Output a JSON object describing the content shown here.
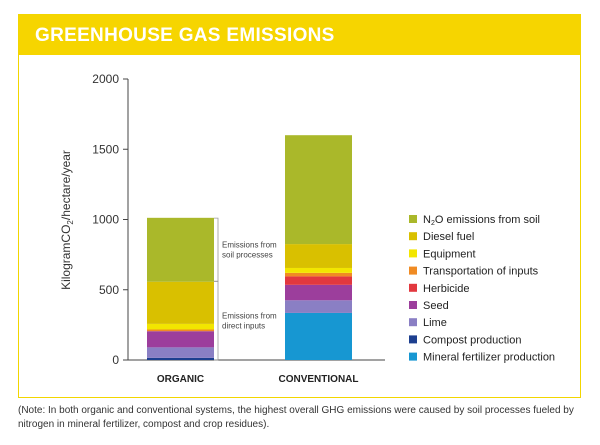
{
  "title": "GREENHOUSE GAS EMISSIONS",
  "note": "(Note: In both organic and conventional systems, the highest overall GHG emissions were caused by soil processes fueled by nitrogen in mineral fertilizer, compost and crop residues).",
  "chart_data": {
    "type": "bar",
    "stacked": true,
    "categories": [
      "ORGANIC",
      "CONVENTIONAL"
    ],
    "ylabel_parts": [
      "KilogramCO",
      "2",
      "/hectare/year"
    ],
    "ylim": [
      0,
      2000
    ],
    "yticks": [
      "0",
      "500",
      "1000",
      "1500",
      "2000"
    ],
    "grid": false,
    "legend_position": "right",
    "series": [
      {
        "name": "Mineral fertilizer production",
        "color": "#1797d2",
        "values": [
          0,
          335
        ]
      },
      {
        "name": "Compost production",
        "color": "#1d3f8f",
        "values": [
          15,
          0
        ]
      },
      {
        "name": "Lime",
        "color": "#8a7fc4",
        "values": [
          75,
          90
        ]
      },
      {
        "name": "Seed",
        "color": "#9c3e9c",
        "values": [
          115,
          110
        ]
      },
      {
        "name": "Herbicide",
        "color": "#e2383f",
        "values": [
          0,
          60
        ]
      },
      {
        "name": "Transportation of inputs",
        "color": "#f08b23",
        "values": [
          12,
          25
        ]
      },
      {
        "name": "Equipment",
        "color": "#f2e600",
        "values": [
          40,
          35
        ]
      },
      {
        "name": "Diesel fuel",
        "color": "#d9c000",
        "values": [
          300,
          170
        ]
      },
      {
        "name": "N2O emissions from soil",
        "name_parts": [
          "N",
          "2",
          "O emissions from soil"
        ],
        "color": "#aab82a",
        "values": [
          455,
          775
        ]
      }
    ],
    "annotations": [
      {
        "lines": [
          "Emissions from",
          "soil processes"
        ],
        "from": 560,
        "to": 1010
      },
      {
        "lines": [
          "Emissions from",
          "direct inputs"
        ],
        "from": 0,
        "to": 560
      }
    ]
  }
}
